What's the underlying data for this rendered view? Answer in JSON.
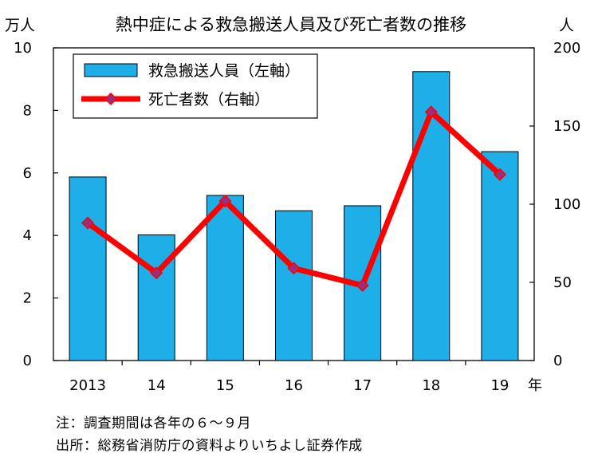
{
  "chart_data": {
    "type": "bar+line",
    "title": "熱中症による救急搬送人員及び死亡者数の推移",
    "categories": [
      "2013",
      "14",
      "15",
      "16",
      "17",
      "18",
      "19"
    ],
    "x_unit": "年",
    "left_axis": {
      "unit": "万人",
      "ylim": [
        0,
        10
      ],
      "ticks": [
        "0",
        "2",
        "4",
        "6",
        "8",
        "10"
      ]
    },
    "right_axis": {
      "unit": "人",
      "ylim": [
        0,
        200
      ],
      "ticks": [
        "0",
        "50",
        "100",
        "150",
        "200"
      ]
    },
    "series": [
      {
        "name": "救急搬送人員（左軸）",
        "type": "bar",
        "axis": "left",
        "color": "#1eaee8",
        "values": [
          5.87,
          4.02,
          5.28,
          4.79,
          4.95,
          9.24,
          6.68
        ]
      },
      {
        "name": "死亡者数（右軸）",
        "type": "line",
        "axis": "right",
        "color": "#ff0000",
        "marker_color": "#9b2d7a",
        "values": [
          88,
          56,
          102,
          59,
          48,
          159,
          119
        ]
      }
    ],
    "legend_position": "top-left",
    "grid": false
  },
  "notes": {
    "note1": "注：調査期間は各年の６～９月",
    "note2": "出所：総務省消防庁の資料よりいちよし証券作成"
  }
}
